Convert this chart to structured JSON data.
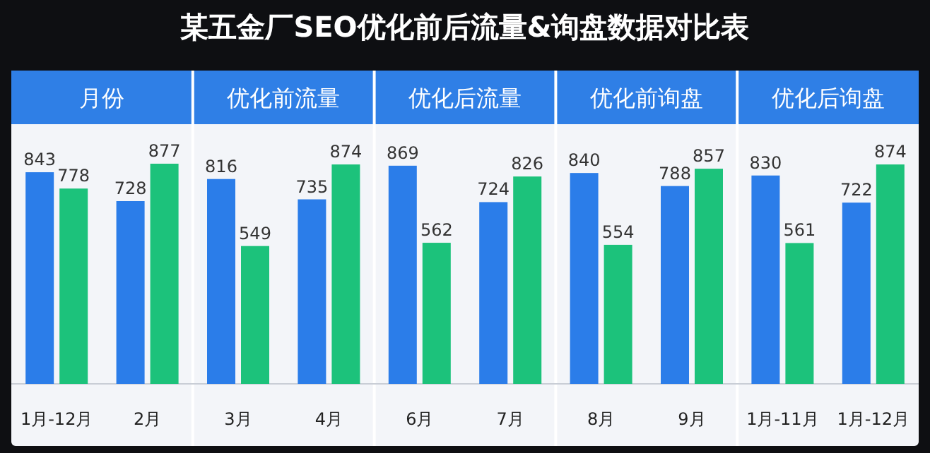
{
  "chart_data": {
    "type": "bar",
    "title": "某五金厂SEO优化前后流量&询盘数据对比表",
    "categories": [
      "1月-12月",
      "2月",
      "3月",
      "4月",
      "6月",
      "7月",
      "8月",
      "9月",
      "1月-11月",
      "1月-12月"
    ],
    "series": [
      {
        "color": "#2b7de9",
        "values": [
          843,
          728,
          816,
          735,
          869,
          724,
          840,
          788,
          830,
          722
        ]
      },
      {
        "color": "#1cc27b",
        "values": [
          778,
          877,
          549,
          874,
          562,
          826,
          554,
          857,
          561,
          874
        ]
      }
    ],
    "data_labels": true,
    "annotations": [
      "月份",
      "优化前流量",
      "优化后流量",
      "优化前询盘",
      "优化后询盘"
    ]
  }
}
